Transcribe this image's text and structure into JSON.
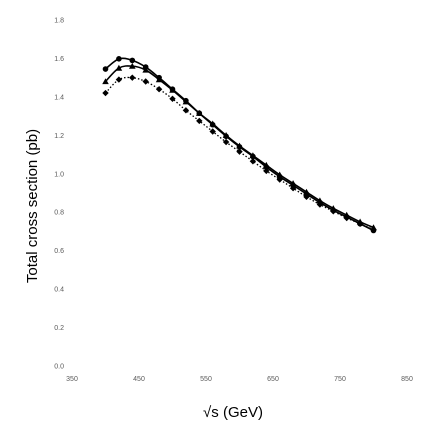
{
  "chart_data": {
    "type": "line",
    "xlabel": "√s (GeV)",
    "ylabel": "Total cross section (pb)",
    "xlim": [
      350,
      850
    ],
    "ylim": [
      0.0,
      1.8
    ],
    "x_ticks": [
      "350",
      "450",
      "550",
      "650",
      "750",
      "850"
    ],
    "y_ticks": [
      "0.0",
      "0.2",
      "0.4",
      "0.6",
      "0.8",
      "1.0",
      "1.2",
      "1.4",
      "1.6",
      "1.8"
    ],
    "x_tick_values": [
      350,
      450,
      550,
      650,
      750,
      850
    ],
    "y_tick_values": [
      0.0,
      0.2,
      0.4,
      0.6,
      0.8,
      1.0,
      1.2,
      1.4,
      1.6,
      1.8
    ],
    "grid": false,
    "legend": "none",
    "series": [
      {
        "marker": "circle",
        "line_style": "solid",
        "color": "#000000",
        "points": [
          [
            400,
            1.545
          ],
          [
            420,
            1.598
          ],
          [
            440,
            1.59
          ],
          [
            460,
            1.555
          ],
          [
            480,
            1.5
          ],
          [
            500,
            1.44
          ],
          [
            520,
            1.38
          ],
          [
            540,
            1.315
          ],
          [
            560,
            1.255
          ],
          [
            580,
            1.195
          ],
          [
            600,
            1.14
          ],
          [
            620,
            1.09
          ],
          [
            640,
            1.035
          ],
          [
            660,
            0.985
          ],
          [
            680,
            0.94
          ],
          [
            700,
            0.895
          ],
          [
            720,
            0.85
          ],
          [
            740,
            0.81
          ],
          [
            760,
            0.775
          ],
          [
            780,
            0.74
          ],
          [
            800,
            0.705
          ]
        ]
      },
      {
        "marker": "triangle",
        "line_style": "solid",
        "color": "#000000",
        "points": [
          [
            400,
            1.48
          ],
          [
            420,
            1.55
          ],
          [
            440,
            1.56
          ],
          [
            460,
            1.54
          ],
          [
            480,
            1.49
          ],
          [
            500,
            1.435
          ],
          [
            520,
            1.375
          ],
          [
            540,
            1.315
          ],
          [
            560,
            1.26
          ],
          [
            580,
            1.2
          ],
          [
            600,
            1.145
          ],
          [
            620,
            1.095
          ],
          [
            640,
            1.045
          ],
          [
            660,
            0.995
          ],
          [
            680,
            0.95
          ],
          [
            700,
            0.905
          ],
          [
            720,
            0.86
          ],
          [
            740,
            0.82
          ],
          [
            760,
            0.785
          ],
          [
            780,
            0.75
          ],
          [
            800,
            0.72
          ]
        ]
      },
      {
        "marker": "diamond",
        "line_style": "dotted",
        "color": "#000000",
        "points": [
          [
            400,
            1.42
          ],
          [
            420,
            1.49
          ],
          [
            440,
            1.5
          ],
          [
            460,
            1.48
          ],
          [
            480,
            1.44
          ],
          [
            500,
            1.39
          ],
          [
            520,
            1.33
          ],
          [
            540,
            1.275
          ],
          [
            560,
            1.22
          ],
          [
            580,
            1.165
          ],
          [
            600,
            1.115
          ],
          [
            620,
            1.065
          ],
          [
            640,
            1.015
          ],
          [
            660,
            0.97
          ],
          [
            680,
            0.925
          ],
          [
            700,
            0.88
          ],
          [
            720,
            0.84
          ],
          [
            740,
            0.805
          ],
          [
            760,
            0.77
          ],
          [
            780,
            0.74
          ],
          [
            800,
            0.71
          ]
        ]
      }
    ]
  }
}
